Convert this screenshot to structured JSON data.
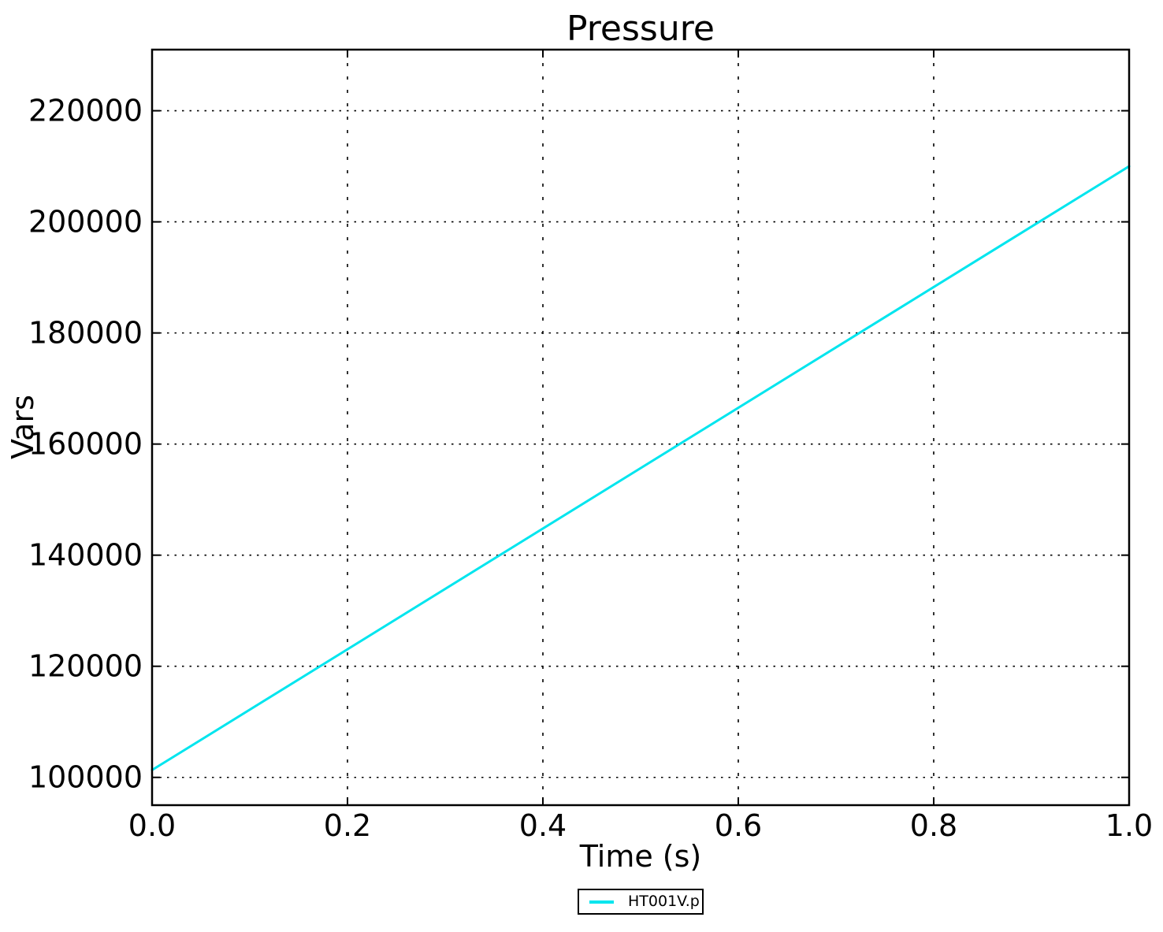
{
  "figure": {
    "background": "#ffffff",
    "axis_color": "#000000",
    "text_color": "#000000"
  },
  "chart_data": {
    "type": "line",
    "title": "Pressure",
    "xlabel": "Time (s)",
    "ylabel": "Vars",
    "xlim": [
      0.0,
      1.0
    ],
    "ylim": [
      95000,
      231000
    ],
    "xticks": [
      0.0,
      0.2,
      0.4,
      0.6,
      0.8,
      1.0
    ],
    "xtick_labels": [
      "0.0",
      "0.2",
      "0.4",
      "0.6",
      "0.8",
      "1.0"
    ],
    "yticks": [
      100000,
      120000,
      140000,
      160000,
      180000,
      200000,
      220000
    ],
    "ytick_labels": [
      "100000",
      "120000",
      "140000",
      "160000",
      "180000",
      "200000",
      "220000"
    ],
    "grid": true,
    "grid_style": "dotted",
    "legend": {
      "position": "bottom-center-outside",
      "entries": [
        {
          "label": "HT001V.p",
          "color": "#00E5EE"
        }
      ]
    },
    "series": [
      {
        "name": "HT001V.p",
        "color": "#00E5EE",
        "x": [
          0.0,
          1.0
        ],
        "y": [
          101325,
          210000
        ]
      }
    ]
  }
}
